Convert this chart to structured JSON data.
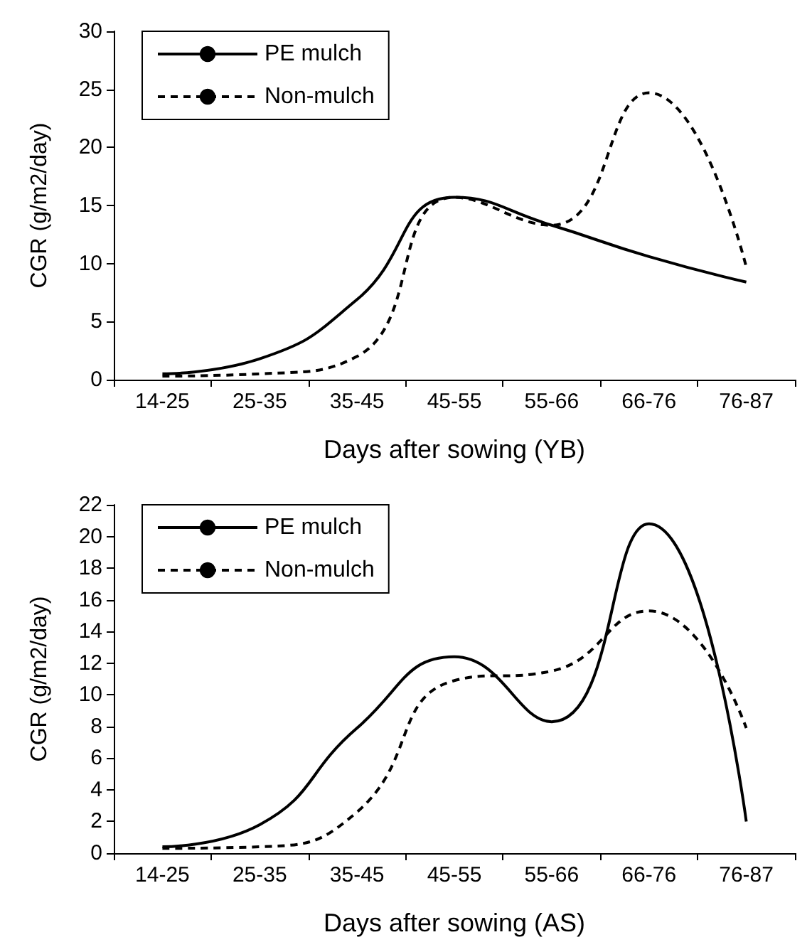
{
  "chart_data": [
    {
      "type": "line",
      "xlabel": "Days after sowing (YB)",
      "ylabel": "CGR (g/m2/day)",
      "categories": [
        "14-25",
        "25-35",
        "35-45",
        "45-55",
        "55-66",
        "66-76",
        "76-87"
      ],
      "series": [
        {
          "name": "PE mulch",
          "color": "#000000",
          "line_style": "solid",
          "values": [
            0.5,
            1.8,
            6.9,
            15.7,
            13.3,
            10.6,
            8.4
          ]
        },
        {
          "name": "Non-mulch",
          "color": "#000000",
          "line_style": "dashed",
          "values": [
            0.3,
            0.5,
            2,
            15.7,
            13.3,
            24.7,
            9.7
          ]
        }
      ],
      "ylim": [
        0,
        30
      ],
      "yticks": [
        0,
        5,
        10,
        15,
        20,
        25,
        30
      ],
      "grid": false,
      "legend": "top left",
      "marker": "none"
    },
    {
      "type": "line",
      "xlabel": "Days after sowing (AS)",
      "ylabel": "CGR (g/m2/day)",
      "categories": [
        "14-25",
        "25-35",
        "35-45",
        "45-55",
        "55-66",
        "66-76",
        "76-87"
      ],
      "series": [
        {
          "name": "PE mulch",
          "color": "#000000",
          "line_style": "solid",
          "values": [
            0.4,
            1.8,
            7.9,
            12.4,
            8.3,
            20.8,
            2
          ]
        },
        {
          "name": "Non-mulch",
          "color": "#000000",
          "line_style": "dashed",
          "values": [
            0.3,
            0.4,
            2.6,
            10.9,
            11.5,
            15.3,
            7.9
          ]
        }
      ],
      "ylim": [
        0,
        22
      ],
      "yticks": [
        0,
        2,
        4,
        6,
        8,
        10,
        12,
        14,
        16,
        18,
        20,
        22
      ],
      "grid": false,
      "legend": "top left",
      "marker": "none"
    }
  ]
}
